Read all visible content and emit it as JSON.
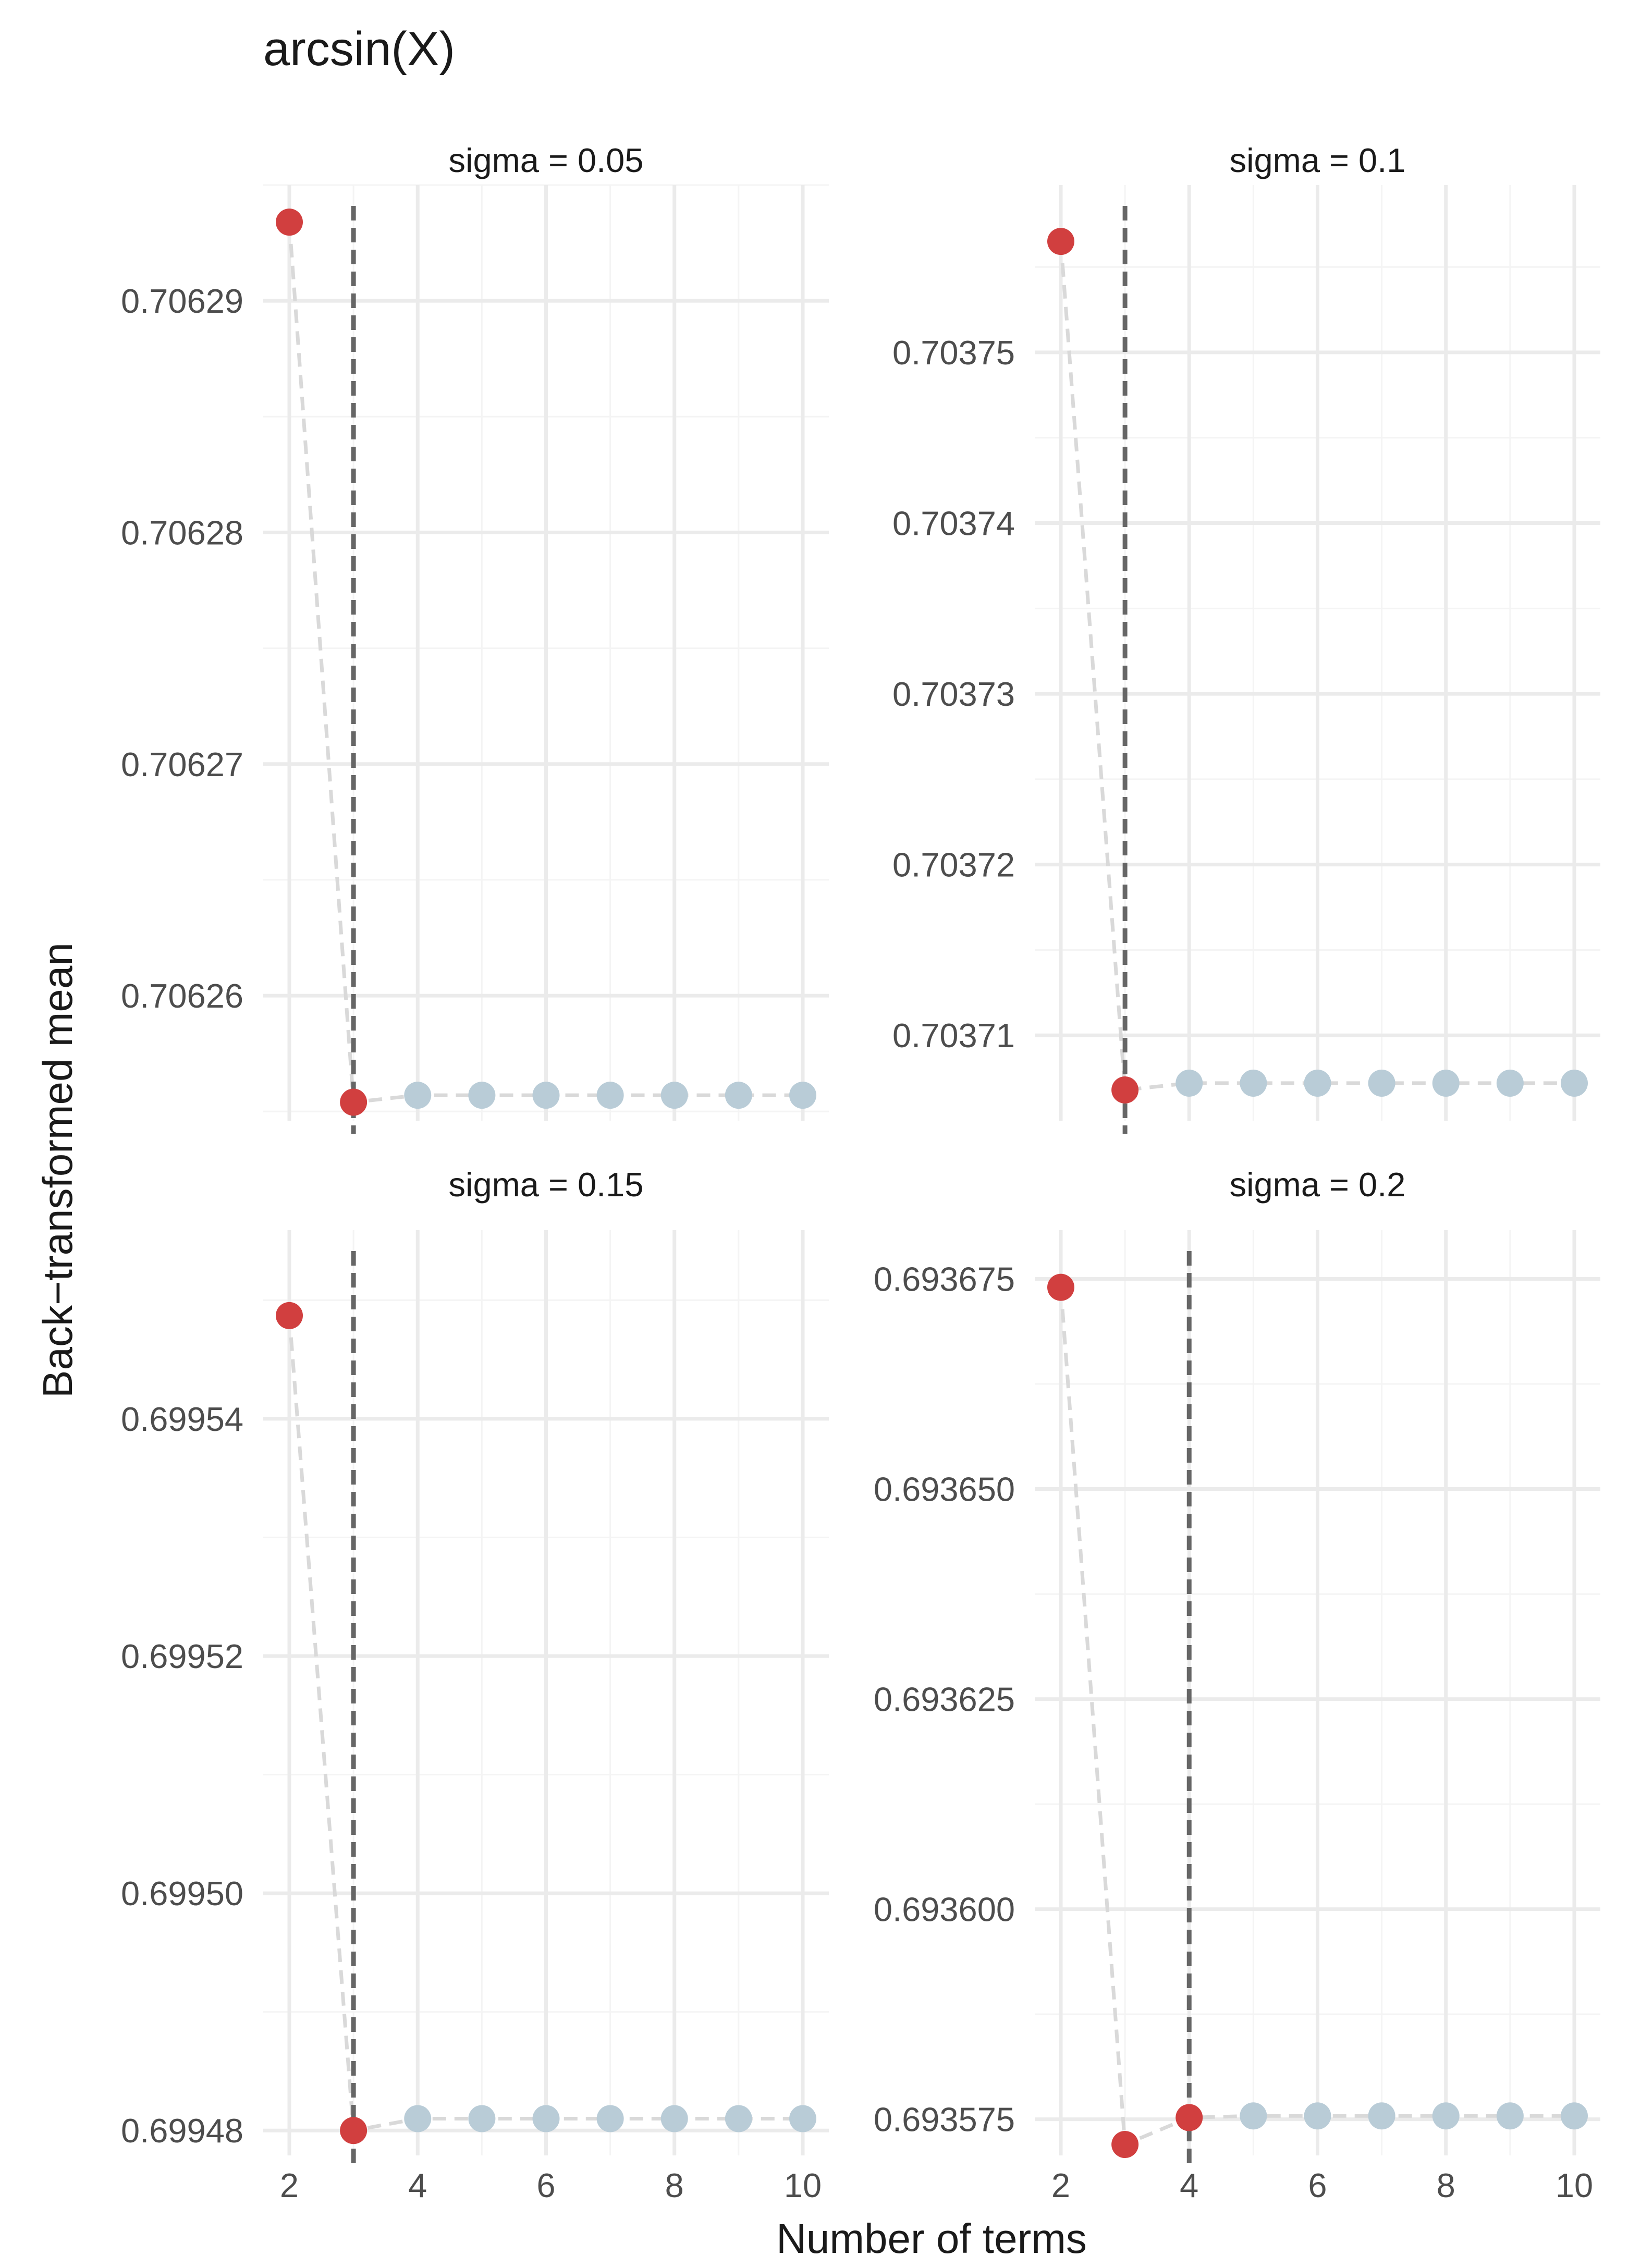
{
  "chart_data": {
    "type": "scatter",
    "title": "arcsin(X)",
    "xlabel": "Number of terms",
    "ylabel": "Back−transformed mean",
    "x_ticks": [
      "2",
      "4",
      "6",
      "8",
      "10"
    ],
    "xlim": [
      2,
      10
    ],
    "grid": true,
    "legend": "none",
    "colors": {
      "highlight": "#d13f3f",
      "other": "#b9ccd7",
      "connector": "#d9d9d9",
      "vline": "#666666",
      "grid_major": "#ebebeb",
      "grid_minor": "#f4f4f4"
    },
    "panels": [
      {
        "label": "sigma = 0.05",
        "y_ticks": [
          "0.70626",
          "0.70627",
          "0.70628",
          "0.70629"
        ],
        "ylim": [
          0.7062546,
          0.706295
        ],
        "vline": 3,
        "points": [
          {
            "x": 2,
            "y": 0.7062934,
            "highlight": true
          },
          {
            "x": 3,
            "y": 0.7062554,
            "highlight": true
          },
          {
            "x": 4,
            "y": 0.7062557,
            "highlight": false
          },
          {
            "x": 5,
            "y": 0.7062557,
            "highlight": false
          },
          {
            "x": 6,
            "y": 0.7062557,
            "highlight": false
          },
          {
            "x": 7,
            "y": 0.7062557,
            "highlight": false
          },
          {
            "x": 8,
            "y": 0.7062557,
            "highlight": false
          },
          {
            "x": 9,
            "y": 0.7062557,
            "highlight": false
          },
          {
            "x": 10,
            "y": 0.7062557,
            "highlight": false
          }
        ]
      },
      {
        "label": "sigma = 0.1",
        "y_ticks": [
          "0.70371",
          "0.70372",
          "0.70373",
          "0.70374",
          "0.70375"
        ],
        "ylim": [
          0.703705,
          0.7037598
        ],
        "vline": 3,
        "points": [
          {
            "x": 2,
            "y": 0.7037565,
            "highlight": true
          },
          {
            "x": 3,
            "y": 0.7037068,
            "highlight": true
          },
          {
            "x": 4,
            "y": 0.7037072,
            "highlight": false
          },
          {
            "x": 5,
            "y": 0.7037072,
            "highlight": false
          },
          {
            "x": 6,
            "y": 0.7037072,
            "highlight": false
          },
          {
            "x": 7,
            "y": 0.7037072,
            "highlight": false
          },
          {
            "x": 8,
            "y": 0.7037072,
            "highlight": false
          },
          {
            "x": 9,
            "y": 0.7037072,
            "highlight": false
          },
          {
            "x": 10,
            "y": 0.7037072,
            "highlight": false
          }
        ]
      },
      {
        "label": "sigma = 0.15",
        "y_ticks": [
          "0.69948",
          "0.69950",
          "0.69952",
          "0.69954"
        ],
        "ylim": [
          0.6994779,
          0.6995559
        ],
        "vline": 3,
        "points": [
          {
            "x": 2,
            "y": 0.6995487,
            "highlight": true
          },
          {
            "x": 3,
            "y": 0.69948,
            "highlight": true
          },
          {
            "x": 4,
            "y": 0.699481,
            "highlight": false
          },
          {
            "x": 5,
            "y": 0.699481,
            "highlight": false
          },
          {
            "x": 6,
            "y": 0.699481,
            "highlight": false
          },
          {
            "x": 7,
            "y": 0.699481,
            "highlight": false
          },
          {
            "x": 8,
            "y": 0.699481,
            "highlight": false
          },
          {
            "x": 9,
            "y": 0.699481,
            "highlight": false
          },
          {
            "x": 10,
            "y": 0.699481,
            "highlight": false
          }
        ]
      },
      {
        "label": "sigma = 0.2",
        "y_ticks": [
          "0.693575",
          "0.693600",
          "0.693625",
          "0.693650",
          "0.693675"
        ],
        "ylim": [
          0.6935707,
          0.6936808
        ],
        "vline": 4,
        "points": [
          {
            "x": 2,
            "y": 0.693674,
            "highlight": true
          },
          {
            "x": 3,
            "y": 0.693572,
            "highlight": true
          },
          {
            "x": 4,
            "y": 0.6935752,
            "highlight": true
          },
          {
            "x": 5,
            "y": 0.6935754,
            "highlight": false
          },
          {
            "x": 6,
            "y": 0.6935754,
            "highlight": false
          },
          {
            "x": 7,
            "y": 0.6935754,
            "highlight": false
          },
          {
            "x": 8,
            "y": 0.6935754,
            "highlight": false
          },
          {
            "x": 9,
            "y": 0.6935754,
            "highlight": false
          },
          {
            "x": 10,
            "y": 0.6935754,
            "highlight": false
          }
        ]
      }
    ]
  }
}
